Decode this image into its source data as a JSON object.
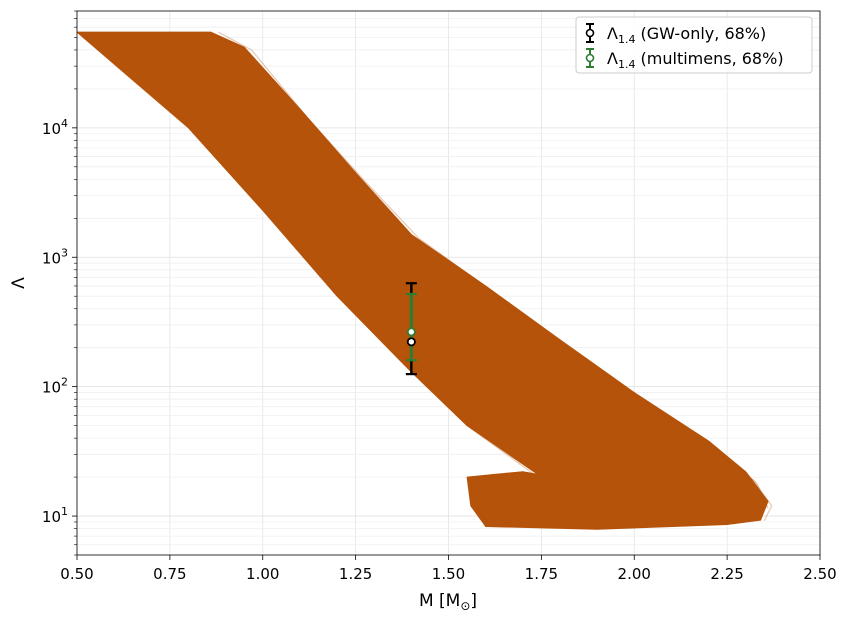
{
  "chart_data": {
    "type": "area",
    "title": "",
    "xlabel": "M [M",
    "xlabel_sub": "⊙",
    "xlabel_close": "]",
    "ylabel": "Λ",
    "xlim": [
      0.5,
      2.5
    ],
    "ylim": [
      5,
      80000
    ],
    "yscale": "log",
    "grid": true,
    "legend_position": "top-right",
    "x_ticks": [
      {
        "value": 0.5,
        "label": "0.50"
      },
      {
        "value": 0.75,
        "label": "0.75"
      },
      {
        "value": 1.0,
        "label": "1.00"
      },
      {
        "value": 1.25,
        "label": "1.25"
      },
      {
        "value": 1.5,
        "label": "1.50"
      },
      {
        "value": 1.75,
        "label": "1.75"
      },
      {
        "value": 2.0,
        "label": "2.00"
      },
      {
        "value": 2.25,
        "label": "2.25"
      },
      {
        "value": 2.5,
        "label": "2.50"
      }
    ],
    "y_ticks": [
      {
        "value": 10,
        "exp": "1"
      },
      {
        "value": 100,
        "exp": "2"
      },
      {
        "value": 1000,
        "exp": "3"
      },
      {
        "value": 10000,
        "exp": "4"
      }
    ],
    "y_tick_base": "10",
    "band": {
      "color": "#b5530b",
      "outline": [
        [
          0.5,
          55000
        ],
        [
          0.86,
          55000
        ],
        [
          0.95,
          42000
        ],
        [
          1.1,
          14000
        ],
        [
          1.25,
          4500
        ],
        [
          1.4,
          1500
        ],
        [
          1.6,
          600
        ],
        [
          1.8,
          230
        ],
        [
          2.0,
          90
        ],
        [
          2.2,
          38
        ],
        [
          2.3,
          22
        ],
        [
          2.36,
          13
        ],
        [
          2.34,
          9.3
        ],
        [
          2.25,
          8.6
        ],
        [
          1.9,
          7.9
        ],
        [
          1.6,
          8.3
        ],
        [
          1.56,
          12
        ],
        [
          1.55,
          20
        ],
        [
          1.7,
          22
        ],
        [
          1.74,
          21
        ],
        [
          1.55,
          50
        ],
        [
          1.4,
          130
        ],
        [
          1.2,
          500
        ],
        [
          1.0,
          2300
        ],
        [
          0.8,
          10000
        ],
        [
          0.5,
          55000
        ]
      ],
      "faint_curves": [
        [
          [
            0.85,
            55000
          ],
          [
            0.95,
            42000
          ],
          [
            1.1,
            13000
          ],
          [
            1.25,
            4300
          ],
          [
            1.4,
            1450
          ],
          [
            1.6,
            570
          ],
          [
            1.8,
            210
          ],
          [
            2.0,
            85
          ],
          [
            2.2,
            35
          ],
          [
            2.32,
            19
          ],
          [
            2.37,
            12
          ],
          [
            2.35,
            9.2
          ]
        ],
        [
          [
            0.88,
            55000
          ],
          [
            0.97,
            40000
          ],
          [
            1.12,
            12000
          ],
          [
            1.27,
            4000
          ],
          [
            1.42,
            1400
          ],
          [
            1.62,
            540
          ],
          [
            1.82,
            200
          ],
          [
            2.02,
            80
          ],
          [
            2.22,
            33
          ],
          [
            2.33,
            18
          ],
          [
            2.36,
            11.5
          ]
        ],
        [
          [
            1.4,
            135
          ],
          [
            1.55,
            50
          ],
          [
            1.73,
            21
          ],
          [
            1.62,
            21
          ],
          [
            1.55,
            19
          ]
        ]
      ]
    },
    "series": [
      {
        "name": "Λ",
        "name_sub": "1.4",
        "name_suffix": " (GW-only, 68%)",
        "color": "#000000",
        "x": 1.4,
        "y": 222,
        "y_low": 125,
        "y_high": 630
      },
      {
        "name": "Λ",
        "name_sub": "1.4",
        "name_suffix": " (multimens, 68%)",
        "color": "#2e7d32",
        "x": 1.4,
        "y": 265,
        "y_low": 160,
        "y_high": 520
      }
    ]
  }
}
